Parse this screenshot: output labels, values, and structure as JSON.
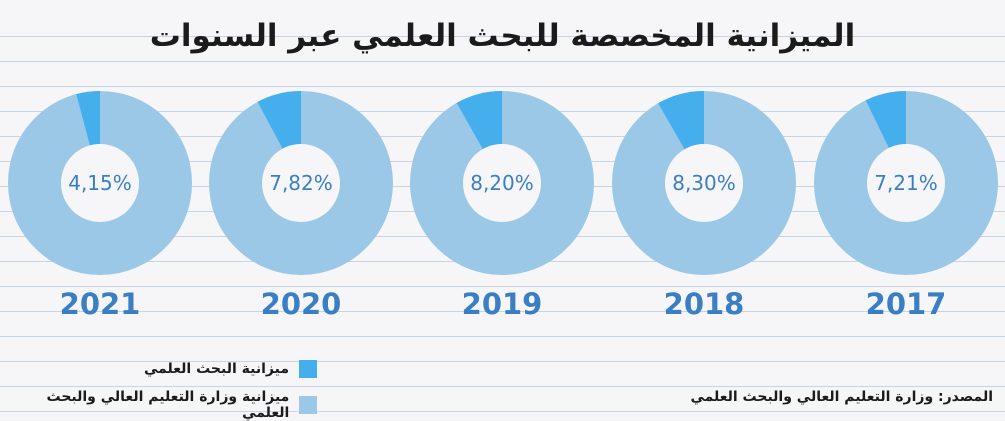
{
  "title": "الميزانية المخصصة للبحث العلمي عبر السنوات",
  "legend": {
    "research": "ميزانية البحث العلمي",
    "ministry": "ميزانية وزارة التعليم العالي والبحث العلمي"
  },
  "source": "المصدر: وزارة التعليم العالي والبحث العلمي",
  "colors": {
    "research": "#45aeed",
    "ministry": "#9ac8e6",
    "label": "#3a7fc4",
    "hole": "#f6f6f8"
  },
  "chart_data": {
    "type": "pie",
    "categories": [
      "2021",
      "2020",
      "2019",
      "2018",
      "2017"
    ],
    "values": [
      4.15,
      7.82,
      8.2,
      8.3,
      7.21
    ],
    "value_labels": [
      "4,15%",
      "7,82%",
      "8,20%",
      "8,30%",
      "7,21%"
    ],
    "series": [
      {
        "name": "ميزانية البحث العلمي",
        "values": [
          4.15,
          7.82,
          8.2,
          8.3,
          7.21
        ]
      },
      {
        "name": "ميزانية وزارة التعليم العالي والبحث العلمي",
        "values": [
          95.85,
          92.18,
          91.8,
          91.7,
          92.79
        ]
      }
    ],
    "title": "الميزانية المخصصة للبحث العلمي عبر السنوات"
  }
}
